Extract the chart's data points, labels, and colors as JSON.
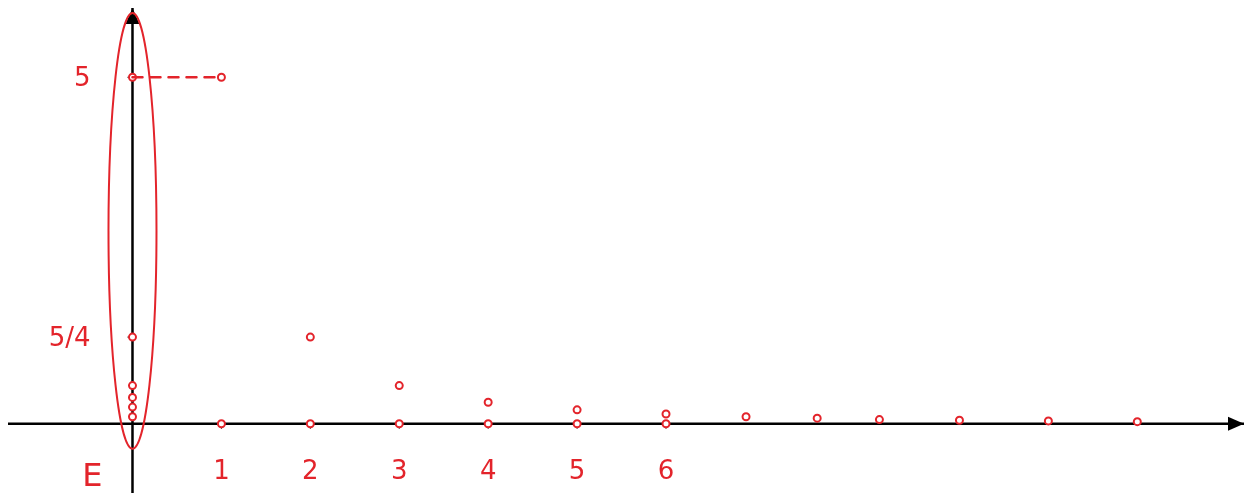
{
  "chart_data": {
    "type": "scatter",
    "annotations": [
      "E"
    ],
    "xlim": [
      -1.4,
      12.5
    ],
    "ylim": [
      -1,
      6
    ],
    "xticks": [
      1,
      2,
      3,
      4,
      5,
      6
    ],
    "yticks": [
      {
        "value": 5,
        "label": "5"
      },
      {
        "value": 1.25,
        "label": "5/4"
      }
    ],
    "marker": "circle",
    "grid": false,
    "series": [
      {
        "color": "#e3242b",
        "x": [
          1,
          2,
          3,
          4,
          5,
          6,
          6.9,
          7.7,
          8.4,
          9.3,
          10.3,
          11.3
        ],
        "values": [
          5,
          1.25,
          0.55,
          0.31,
          0.2,
          0.14,
          0.1,
          0.08,
          0.06,
          0.05,
          0.04,
          0.03
        ]
      },
      {
        "color": "#e3242b",
        "x": [
          0,
          0,
          0,
          0,
          0,
          0
        ],
        "values": [
          5,
          1.25,
          0.55,
          0.38,
          0.24,
          0.1
        ]
      },
      {
        "color": "#e3242b",
        "x": [
          1,
          2,
          3,
          4,
          5,
          6
        ],
        "values": [
          0,
          0,
          0,
          0,
          0,
          0
        ]
      },
      {
        "type": "line",
        "color": "#e3242b",
        "line_style": "dashed",
        "marker": "none",
        "x": [
          0,
          1
        ],
        "values": [
          5,
          5
        ]
      }
    ]
  }
}
